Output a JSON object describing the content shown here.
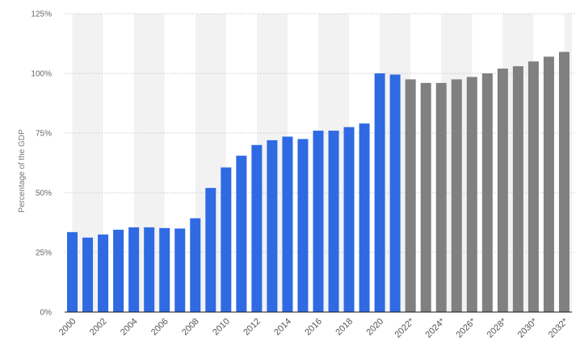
{
  "chart_data": {
    "type": "bar",
    "ylabel": "Percentage of the GDP",
    "ylim": [
      0,
      125
    ],
    "y_ticks": [
      {
        "value": 0,
        "label": "0%"
      },
      {
        "value": 25,
        "label": "25%"
      },
      {
        "value": 50,
        "label": "50%"
      },
      {
        "value": 75,
        "label": "75%"
      },
      {
        "value": 100,
        "label": "100%"
      },
      {
        "value": 125,
        "label": "125%"
      }
    ],
    "grid": true,
    "categories": [
      "2000",
      "2001",
      "2002",
      "2003",
      "2004",
      "2005",
      "2006",
      "2007",
      "2008",
      "2009",
      "2010",
      "2011",
      "2012",
      "2013",
      "2014",
      "2015",
      "2016",
      "2017",
      "2018",
      "2019",
      "2020",
      "2021",
      "2022*",
      "2023*",
      "2024*",
      "2025*",
      "2026*",
      "2027*",
      "2028*",
      "2029*",
      "2030*",
      "2031*",
      "2032*"
    ],
    "tick_labels": [
      "2000",
      "",
      "2002",
      "",
      "2004",
      "",
      "2006",
      "",
      "2008",
      "",
      "2010",
      "",
      "2012",
      "",
      "2014",
      "",
      "2016",
      "",
      "2018",
      "",
      "2020",
      "",
      "2022*",
      "",
      "2024*",
      "",
      "2026*",
      "",
      "2028*",
      "",
      "2030*",
      "",
      "2032*"
    ],
    "values": [
      33.5,
      31.2,
      32.5,
      34.5,
      35.5,
      35.5,
      35.2,
      35.0,
      39.3,
      52.0,
      60.6,
      65.5,
      70.0,
      72.0,
      73.5,
      72.5,
      76.0,
      76.0,
      77.5,
      79.0,
      100.0,
      99.5,
      97.5,
      96.0,
      96.0,
      97.5,
      98.5,
      100.0,
      102.0,
      103.0,
      105.0,
      107.0,
      109.0
    ],
    "bar_types": [
      "actual",
      "actual",
      "actual",
      "actual",
      "actual",
      "actual",
      "actual",
      "actual",
      "actual",
      "actual",
      "actual",
      "actual",
      "actual",
      "actual",
      "actual",
      "actual",
      "actual",
      "actual",
      "actual",
      "actual",
      "actual",
      "actual",
      "projection",
      "projection",
      "projection",
      "projection",
      "projection",
      "projection",
      "projection",
      "projection",
      "projection",
      "projection",
      "projection"
    ],
    "colors": {
      "actual": "#2f6ae3",
      "projection": "#808080",
      "band": "#f2f2f2",
      "grid": "#c8c8c8",
      "axis": "#1a1a1a"
    }
  }
}
